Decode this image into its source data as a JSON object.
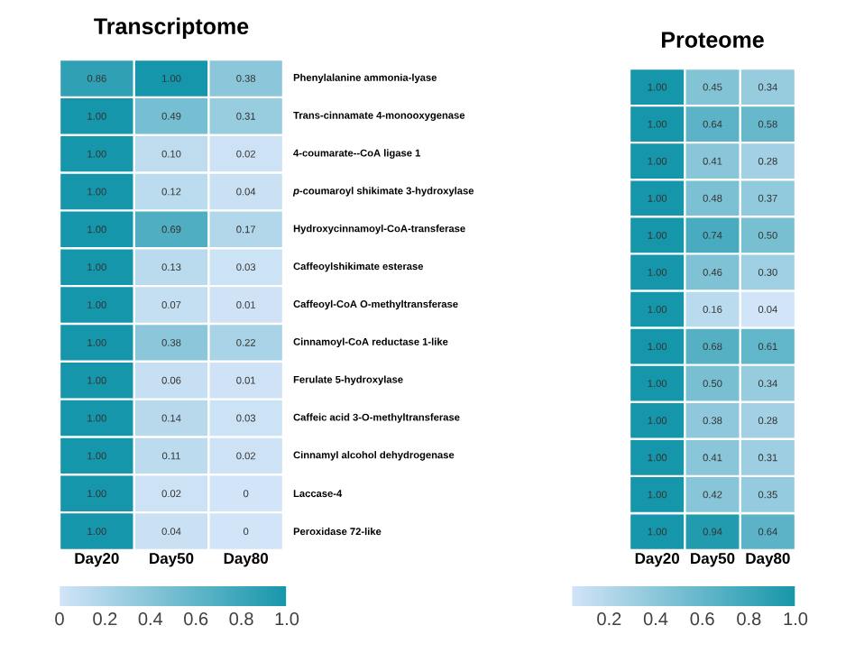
{
  "chart_data": [
    {
      "type": "heatmap",
      "title": "Transcriptome",
      "categories": [
        "Day20",
        "Day50",
        "Day80"
      ],
      "y_categories": [
        "Phenylalanine ammonia-lyase",
        "Trans-cinnamate 4-monooxygenase",
        "4-coumarate--CoA ligase 1",
        "*p*-coumaroyl shikimate 3-hydroxylase",
        "Hydroxycinnamoyl-CoA-transferase",
        "Caffeoylshikimate esterase",
        "Caffeoyl-CoA O-methyltransferase",
        "Cinnamoyl-CoA reductase 1-like",
        "Ferulate 5-hydroxylase",
        "Caffeic acid 3-O-methyltransferase",
        "Cinnamyl alcohol dehydrogenase",
        "Laccase-4",
        "Peroxidase 72-like"
      ],
      "cells": [
        [
          0.86,
          1.0,
          0.38
        ],
        [
          1.0,
          0.49,
          0.31
        ],
        [
          1.0,
          0.1,
          0.02
        ],
        [
          1.0,
          0.12,
          0.04
        ],
        [
          1.0,
          0.69,
          0.17
        ],
        [
          1.0,
          0.13,
          0.03
        ],
        [
          1.0,
          0.07,
          0.01
        ],
        [
          1.0,
          0.38,
          0.22
        ],
        [
          1.0,
          0.06,
          0.01
        ],
        [
          1.0,
          0.14,
          0.03
        ],
        [
          1.0,
          0.11,
          0.02
        ],
        [
          1.0,
          0.02,
          0
        ],
        [
          1.0,
          0.04,
          0
        ]
      ],
      "cell_labels": [
        [
          "0.86",
          "1.00",
          "0.38"
        ],
        [
          "1.00",
          "0.49",
          "0.31"
        ],
        [
          "1.00",
          "0.10",
          "0.02"
        ],
        [
          "1.00",
          "0.12",
          "0.04"
        ],
        [
          "1.00",
          "0.69",
          "0.17"
        ],
        [
          "1.00",
          "0.13",
          "0.03"
        ],
        [
          "1.00",
          "0.07",
          "0.01"
        ],
        [
          "1.00",
          "0.38",
          "0.22"
        ],
        [
          "1.00",
          "0.06",
          "0.01"
        ],
        [
          "1.00",
          "0.14",
          "0.03"
        ],
        [
          "1.00",
          "0.11",
          "0.02"
        ],
        [
          "1.00",
          "0.02",
          "0"
        ],
        [
          "1.00",
          "0.04",
          "0"
        ]
      ],
      "clim": [
        0,
        1
      ],
      "cticks": [
        0,
        0.2,
        0.4,
        0.6,
        0.8,
        {
          "value": 1,
          "label": "1.0"
        }
      ]
    },
    {
      "type": "heatmap",
      "title": "Proteome",
      "categories": [
        "Day20",
        "Day50",
        "Day80"
      ],
      "y_categories": [
        null,
        null,
        null,
        null,
        null,
        null,
        null,
        null,
        null,
        null,
        null,
        null,
        null
      ],
      "cells": [
        [
          1.0,
          0.45,
          0.34
        ],
        [
          1.0,
          0.64,
          0.58
        ],
        [
          1.0,
          0.41,
          0.28
        ],
        [
          1.0,
          0.48,
          0.37
        ],
        [
          1.0,
          0.74,
          0.5
        ],
        [
          1.0,
          0.46,
          0.3
        ],
        [
          1.0,
          0.16,
          0.04
        ],
        [
          1.0,
          0.68,
          0.61
        ],
        [
          1.0,
          0.5,
          0.34
        ],
        [
          1.0,
          0.38,
          0.28
        ],
        [
          1.0,
          0.41,
          0.31
        ],
        [
          1.0,
          0.42,
          0.35
        ],
        [
          1.0,
          0.94,
          0.64
        ]
      ],
      "cell_labels": [
        [
          "1.00",
          "0.45",
          "0.34"
        ],
        [
          "1.00",
          "0.64",
          "0.58"
        ],
        [
          "1.00",
          "0.41",
          "0.28"
        ],
        [
          "1.00",
          "0.48",
          "0.37"
        ],
        [
          "1.00",
          "0.74",
          "0.50"
        ],
        [
          "1.00",
          "0.46",
          "0.30"
        ],
        [
          "1.00",
          "0.16",
          "0.04"
        ],
        [
          "1.00",
          "0.68",
          "0.61"
        ],
        [
          "1.00",
          "0.50",
          "0.34"
        ],
        [
          "1.00",
          "0.38",
          "0.28"
        ],
        [
          "1.00",
          "0.41",
          "0.31"
        ],
        [
          "1.00",
          "0.42",
          "0.35"
        ],
        [
          "1.00",
          "0.94",
          "0.64"
        ]
      ],
      "clim": [
        0.04,
        1
      ],
      "cticks": [
        0.2,
        0.4,
        0.6,
        0.8,
        {
          "value": 1,
          "label": "1.0"
        }
      ]
    }
  ]
}
